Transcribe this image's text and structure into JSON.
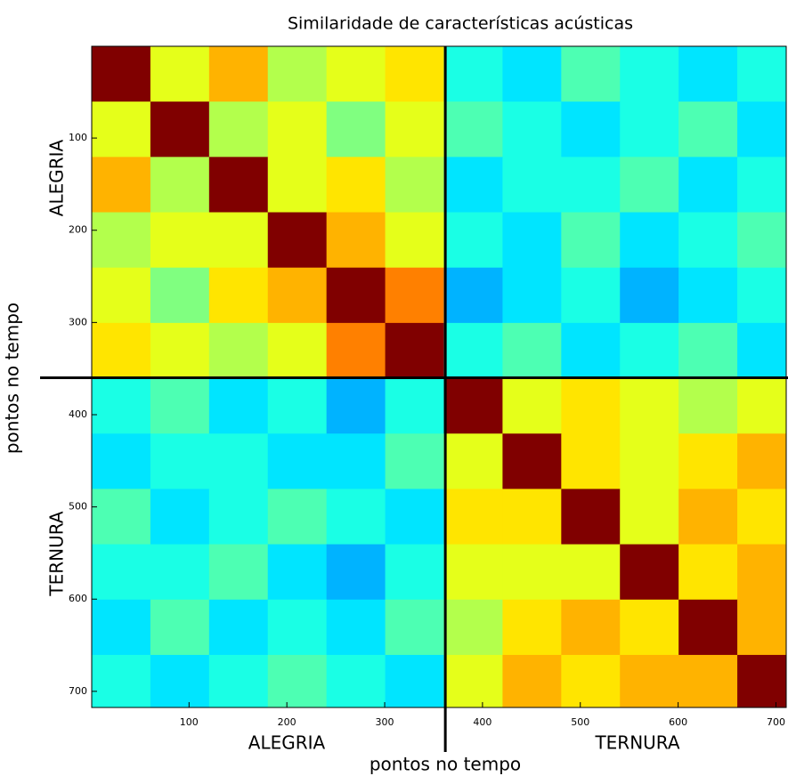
{
  "chart_data": {
    "type": "heatmap",
    "title": "Similaridade de características acústicas",
    "xlabel": "pontos no tempo",
    "ylabel": "pontos no tempo",
    "x_group_labels": [
      "ALEGRIA",
      "TERNURA"
    ],
    "y_group_labels": [
      "ALEGRIA",
      "TERNURA"
    ],
    "xlim": [
      0.5,
      710.5
    ],
    "ylim": [
      0.5,
      717.5
    ],
    "xticks": [
      100,
      200,
      300,
      400,
      500,
      600,
      700
    ],
    "yticks": [
      100,
      200,
      300,
      400,
      500,
      600,
      700
    ],
    "dividers": {
      "x": 362,
      "y": 360
    },
    "clim": [
      0,
      1
    ],
    "colormap": "jet",
    "x_bins": [
      0.5,
      60.5,
      120.5,
      180.5,
      240.5,
      300.5,
      360.5,
      420.5,
      480.5,
      540.5,
      600.5,
      660.5,
      710.5
    ],
    "y_bins": [
      0.5,
      60.5,
      120.5,
      180.5,
      240.5,
      300.5,
      360.5,
      420.5,
      480.5,
      540.5,
      600.5,
      660.5,
      717.5
    ],
    "z": [
      [
        1,
        0.6,
        0.7,
        0.55,
        0.6,
        0.65,
        0.4,
        0.35,
        0.45,
        0.4,
        0.35,
        0.4
      ],
      [
        0.6,
        1,
        0.55,
        0.6,
        0.5,
        0.6,
        0.45,
        0.4,
        0.35,
        0.4,
        0.45,
        0.35
      ],
      [
        0.7,
        0.55,
        1,
        0.6,
        0.65,
        0.55,
        0.35,
        0.4,
        0.4,
        0.45,
        0.35,
        0.4
      ],
      [
        0.55,
        0.6,
        0.6,
        1,
        0.7,
        0.6,
        0.4,
        0.35,
        0.45,
        0.35,
        0.4,
        0.45
      ],
      [
        0.6,
        0.5,
        0.65,
        0.7,
        1,
        0.75,
        0.3,
        0.35,
        0.4,
        0.3,
        0.35,
        0.4
      ],
      [
        0.65,
        0.6,
        0.55,
        0.6,
        0.75,
        1,
        0.4,
        0.45,
        0.35,
        0.4,
        0.45,
        0.35
      ],
      [
        0.4,
        0.45,
        0.35,
        0.4,
        0.3,
        0.4,
        1,
        0.6,
        0.65,
        0.6,
        0.55,
        0.6
      ],
      [
        0.35,
        0.4,
        0.4,
        0.35,
        0.35,
        0.45,
        0.6,
        1,
        0.65,
        0.6,
        0.65,
        0.7
      ],
      [
        0.45,
        0.35,
        0.4,
        0.45,
        0.4,
        0.35,
        0.65,
        0.65,
        1,
        0.6,
        0.7,
        0.65
      ],
      [
        0.4,
        0.4,
        0.45,
        0.35,
        0.3,
        0.4,
        0.6,
        0.6,
        0.6,
        1,
        0.65,
        0.7
      ],
      [
        0.35,
        0.45,
        0.35,
        0.4,
        0.35,
        0.45,
        0.55,
        0.65,
        0.7,
        0.65,
        1,
        0.7
      ],
      [
        0.4,
        0.35,
        0.4,
        0.45,
        0.4,
        0.35,
        0.6,
        0.7,
        0.65,
        0.7,
        0.7,
        1
      ]
    ]
  }
}
